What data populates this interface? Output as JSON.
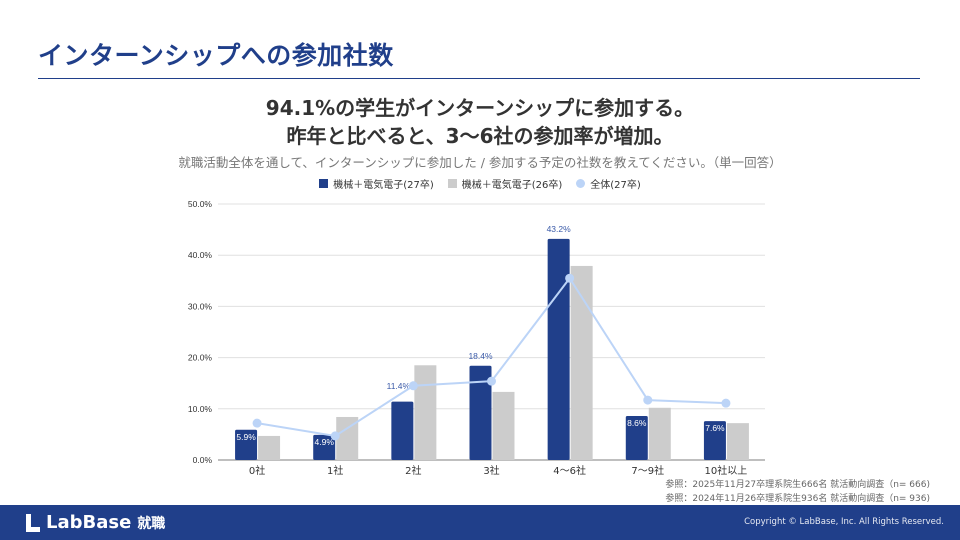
{
  "page": {
    "title": "インターンシップへの参加社数",
    "headline_1": "94.1%の学生がインターンシップに参加する。",
    "headline_2": "昨年と比べると、3〜6社の参加率が増加。",
    "question": "就職活動全体を通して、インターンシップに参加した / 参加する予定の社数を教えてください。（単一回答）"
  },
  "references": [
    "参照：2025年11月27卒理系院生666名 就活動向調査（n= 666)",
    "参照：2024年11月26卒理系院生936名 就活動向調査（n= 936)"
  ],
  "footer": {
    "logo_text": "LabBase",
    "logo_sub": "就職",
    "copyright": "Copyright © LabBase, Inc. All Rights Reserved."
  },
  "colors": {
    "brand": "#203f8a",
    "series_27": "#203f8a",
    "series_26": "#cccccc",
    "series_all": "#bcd4f7"
  },
  "chart_data": {
    "type": "bar",
    "categories": [
      "0社",
      "1社",
      "2社",
      "3社",
      "4〜6社",
      "7〜9社",
      "10社以上"
    ],
    "ylim": [
      0,
      50
    ],
    "yticks": [
      "0.0%",
      "10.0%",
      "20.0%",
      "30.0%",
      "40.0%",
      "50.0%"
    ],
    "ytick_values": [
      0,
      10,
      20,
      30,
      40,
      50
    ],
    "grid": true,
    "legend_position": "top",
    "series": [
      {
        "name": "機械＋電気電子(27卒)",
        "kind": "bar",
        "values": [
          5.9,
          4.9,
          11.4,
          18.4,
          43.2,
          8.6,
          7.6
        ],
        "labels": [
          "5.9%",
          "4.9%",
          "11.4%",
          "18.4%",
          "43.2%",
          "8.6%",
          "7.6%"
        ]
      },
      {
        "name": "機械＋電気電子(26卒)",
        "kind": "bar",
        "values": [
          4.7,
          8.4,
          18.5,
          13.3,
          37.9,
          10.2,
          7.2
        ]
      },
      {
        "name": "全体(27卒)",
        "kind": "line",
        "values": [
          7.2,
          4.7,
          14.5,
          15.4,
          35.5,
          11.7,
          11.1
        ]
      }
    ]
  }
}
